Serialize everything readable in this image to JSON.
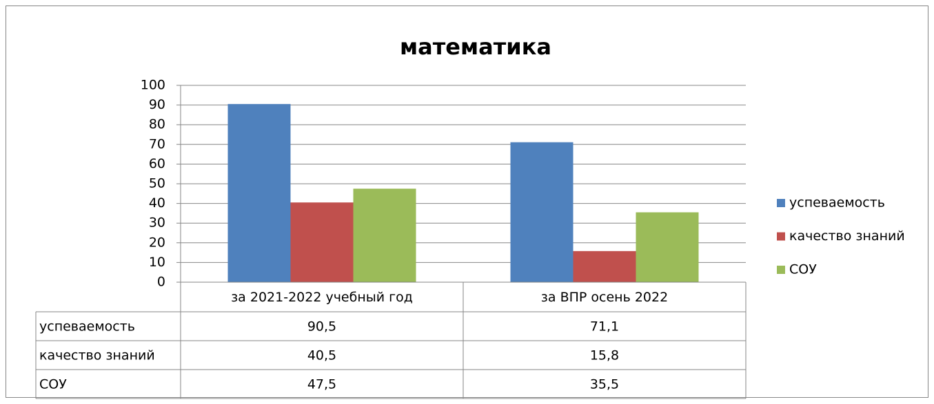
{
  "chart_data": {
    "type": "bar",
    "title": "математика",
    "categories": [
      "за 2021-2022 учебный год",
      "за ВПР осень 2022"
    ],
    "series": [
      {
        "name": "успеваемость",
        "color": "#4f81bd",
        "values": [
          90.5,
          71.1
        ],
        "value_labels": [
          "90,5",
          "71,1"
        ]
      },
      {
        "name": "качество знаний",
        "color": "#c0504d",
        "values": [
          40.5,
          15.8
        ],
        "value_labels": [
          "40,5",
          "15,8"
        ]
      },
      {
        "name": "СОУ",
        "color": "#9bbb59",
        "values": [
          47.5,
          35.5
        ],
        "value_labels": [
          "47,5",
          "35,5"
        ]
      }
    ],
    "ylim": [
      0,
      100
    ],
    "yticks": [
      0,
      10,
      20,
      30,
      40,
      50,
      60,
      70,
      80,
      90,
      100
    ],
    "grid": true,
    "legend": "right",
    "data_table": true
  }
}
